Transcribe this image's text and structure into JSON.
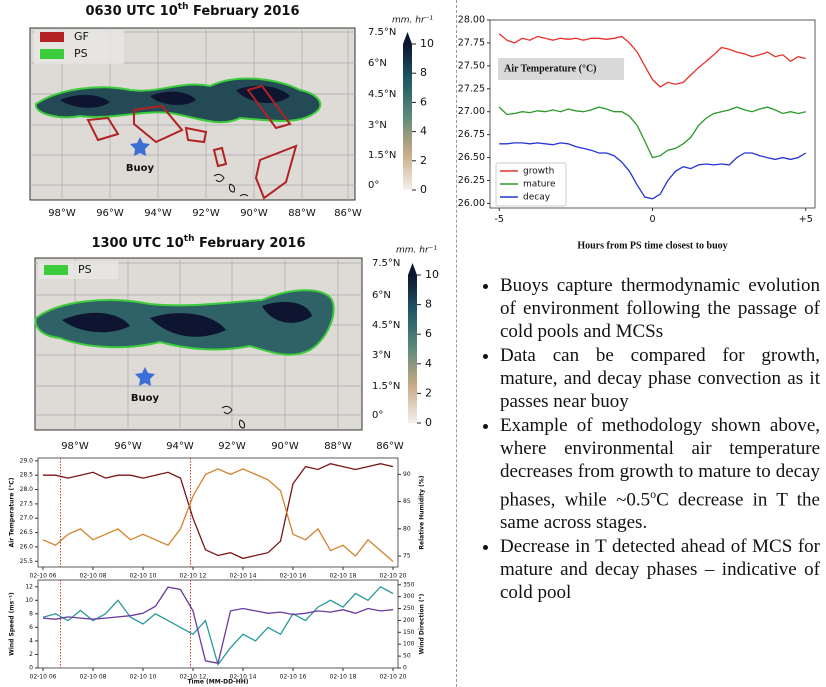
{
  "maps": [
    {
      "title": {
        "pre": "0630 UTC 10",
        "sup": "th",
        "post": " February 2016"
      },
      "unit": "mm. hr⁻¹",
      "legend": [
        {
          "name": "GF",
          "color": "#b22222"
        },
        {
          "name": "PS",
          "color": "#3ccc3c"
        }
      ],
      "lat_labels": [
        "7.5°N",
        "6°N",
        "4.5°N",
        "3°N",
        "1.5°N",
        "0°"
      ],
      "lon_labels": [
        "98°W",
        "96°W",
        "94°W",
        "92°W",
        "90°W",
        "88°W",
        "86°W"
      ],
      "colorbar_ticks": [
        0,
        2,
        4,
        6,
        8,
        10
      ],
      "buoy_label": "Buoy"
    },
    {
      "title": {
        "pre": "1300 UTC 10",
        "sup": "th",
        "post": " February 2016"
      },
      "unit": "mm. hr⁻¹",
      "legend": [
        {
          "name": "PS",
          "color": "#3ccc3c"
        }
      ],
      "lat_labels": [
        "7.5°N",
        "6°N",
        "4.5°N",
        "3°N",
        "1.5°N",
        "0°"
      ],
      "lon_labels": [
        "98°W",
        "96°W",
        "94°W",
        "92°W",
        "90°W",
        "88°W",
        "86°W"
      ],
      "colorbar_ticks": [
        0,
        2,
        4,
        6,
        8,
        10
      ],
      "buoy_label": "Buoy"
    }
  ],
  "chart_data": [
    {
      "type": "line",
      "x": [
        6,
        6.5,
        7,
        7.5,
        8,
        8.5,
        9,
        9.5,
        10,
        10.5,
        11,
        11.5,
        12,
        12.5,
        13,
        13.5,
        14,
        14.5,
        15,
        15.5,
        16,
        16.5,
        17,
        17.5,
        18,
        18.5,
        19,
        19.5,
        20
      ],
      "xlim": [
        5.8,
        20.2
      ],
      "xticks": [
        {
          "value": 6,
          "label": "02-10 06"
        },
        {
          "value": 8,
          "label": "02-10 08"
        },
        {
          "value": 10,
          "label": "02-10 10"
        },
        {
          "value": 12,
          "label": "02-10 12"
        },
        {
          "value": 14,
          "label": "02-10 14"
        },
        {
          "value": 16,
          "label": "02-10 16"
        },
        {
          "value": 18,
          "label": "02-10 18"
        },
        {
          "value": 20,
          "label": "02-10 20"
        }
      ],
      "ylim": [
        25.3,
        29.1
      ],
      "yticks": [
        25.5,
        {
          "value": 26,
          "label": "26.0"
        },
        26.5,
        {
          "value": 27,
          "label": "27.0"
        },
        27.5,
        {
          "value": 28,
          "label": "28.0"
        },
        28.5,
        {
          "value": 29,
          "label": "29.0"
        }
      ],
      "y2lim": [
        73,
        93
      ],
      "y2ticks": [
        75,
        80,
        85,
        90
      ],
      "ylabel": "Air Temperature (°C)",
      "y2label": "Relative Humidity (%)",
      "vlines": [
        6.7,
        11.9
      ],
      "vline_color": "#c0392b",
      "series": [
        {
          "color": "#7a1616",
          "values": [
            28.5,
            28.5,
            28.4,
            28.5,
            28.6,
            28.4,
            28.5,
            28.5,
            28.4,
            28.5,
            28.6,
            28.4,
            27,
            25.9,
            25.7,
            25.8,
            25.6,
            25.7,
            25.8,
            26.2,
            28.2,
            28.8,
            28.7,
            28.9,
            28.8,
            28.7,
            28.8,
            28.9,
            28.8
          ]
        },
        {
          "color": "#d4822a",
          "axis": "y2",
          "values": [
            78,
            77,
            79,
            80,
            78,
            79,
            80,
            78,
            79,
            78,
            77,
            80,
            86,
            90,
            91,
            90,
            91,
            90,
            89,
            87,
            79,
            78,
            80,
            76,
            77,
            75,
            78,
            76,
            74
          ]
        }
      ]
    },
    {
      "type": "line",
      "x": [
        6,
        6.5,
        7,
        7.5,
        8,
        8.5,
        9,
        9.5,
        10,
        10.5,
        11,
        11.5,
        12,
        12.5,
        13,
        13.5,
        14,
        14.5,
        15,
        15.5,
        16,
        16.5,
        17,
        17.5,
        18,
        18.5,
        19,
        19.5,
        20
      ],
      "xlim": [
        5.8,
        20.2
      ],
      "xticks": [
        {
          "value": 6,
          "label": "02-10 06"
        },
        {
          "value": 8,
          "label": "02-10 08"
        },
        {
          "value": 10,
          "label": "02-10 10"
        },
        {
          "value": 12,
          "label": "02-10 12"
        },
        {
          "value": 14,
          "label": "02-10 14"
        },
        {
          "value": 16,
          "label": "02-10 16"
        },
        {
          "value": 18,
          "label": "02-10 18"
        },
        {
          "value": 20,
          "label": "02-10 20"
        }
      ],
      "ylim": [
        0,
        13
      ],
      "yticks": [
        0,
        2,
        4,
        6,
        8,
        10,
        12
      ],
      "y2lim": [
        0,
        370
      ],
      "y2ticks": [
        0,
        50,
        100,
        150,
        200,
        250,
        300,
        350
      ],
      "ylabel": "Wind Speed (ms⁻¹)",
      "y2label": "Wind Direction (°)",
      "xlabel": "Time (MM-DD-HH)",
      "vlines": [
        6.7,
        11.9
      ],
      "vline_color": "#c0392b",
      "series": [
        {
          "color": "#2a9a9a",
          "values": [
            7.5,
            8,
            7,
            8.5,
            7,
            8,
            10,
            7.5,
            6.5,
            8,
            7,
            6,
            5,
            7,
            0.5,
            3,
            5,
            4,
            6,
            5,
            8,
            7,
            9,
            10,
            9,
            11,
            10,
            12,
            11
          ]
        },
        {
          "color": "#6a3aa0",
          "axis": "y2",
          "values": [
            210,
            205,
            215,
            210,
            205,
            210,
            215,
            220,
            230,
            260,
            340,
            330,
            240,
            30,
            20,
            240,
            250,
            240,
            230,
            235,
            225,
            230,
            240,
            235,
            245,
            230,
            250,
            240,
            245
          ]
        }
      ]
    },
    {
      "type": "line",
      "x": [
        -5,
        -4.75,
        -4.5,
        -4.25,
        -4,
        -3.75,
        -3.5,
        -3.25,
        -3,
        -2.75,
        -2.5,
        -2.25,
        -2,
        -1.75,
        -1.5,
        -1.25,
        -1,
        -0.75,
        -0.5,
        -0.25,
        0,
        0.25,
        0.5,
        0.75,
        1,
        1.25,
        1.5,
        1.75,
        2,
        2.25,
        2.5,
        2.75,
        3,
        3.25,
        3.5,
        3.75,
        4,
        4.25,
        4.5,
        4.75,
        5
      ],
      "xlim": [
        -5.3,
        5.3
      ],
      "xticks": [
        -5,
        0,
        {
          "value": 5,
          "label": "+5"
        }
      ],
      "ylim": [
        25.95,
        28.0
      ],
      "yticks": [
        {
          "value": 26,
          "label": "26.00"
        },
        26.25,
        {
          "value": 26.5,
          "label": "26.50"
        },
        26.75,
        {
          "value": 27,
          "label": "27.00"
        },
        27.25,
        {
          "value": 27.5,
          "label": "27.50"
        },
        27.75,
        {
          "value": 28,
          "label": "28.00"
        }
      ],
      "xlabel": "Hours from  PS time closest to buoy",
      "annotation": "Air Temperature (°C)",
      "legend": "lower left",
      "series": [
        {
          "name": "growth",
          "color": "#e8302a",
          "values": [
            27.85,
            27.78,
            27.75,
            27.8,
            27.78,
            27.82,
            27.8,
            27.78,
            27.8,
            27.79,
            27.8,
            27.78,
            27.8,
            27.8,
            27.79,
            27.8,
            27.82,
            27.75,
            27.65,
            27.5,
            27.35,
            27.27,
            27.32,
            27.3,
            27.32,
            27.4,
            27.48,
            27.55,
            27.62,
            27.7,
            27.68,
            27.65,
            27.63,
            27.6,
            27.62,
            27.65,
            27.6,
            27.62,
            27.55,
            27.6,
            27.58
          ]
        },
        {
          "name": "mature",
          "color": "#2a9a2a",
          "values": [
            27.05,
            26.97,
            26.98,
            27.0,
            26.99,
            27.01,
            27.0,
            27.02,
            27.0,
            27.03,
            27.01,
            27.0,
            27.02,
            27.05,
            27.03,
            27.0,
            27.0,
            26.95,
            26.85,
            26.68,
            26.5,
            26.52,
            26.58,
            26.6,
            26.65,
            26.72,
            26.85,
            26.93,
            26.98,
            27.0,
            27.02,
            27.05,
            27.02,
            27.0,
            27.03,
            27.05,
            27.02,
            26.98,
            27.0,
            26.98,
            27.0
          ]
        },
        {
          "name": "decay",
          "color": "#2435d8",
          "values": [
            26.65,
            26.65,
            26.66,
            26.66,
            26.65,
            26.66,
            26.65,
            26.64,
            26.66,
            26.65,
            26.62,
            26.6,
            26.58,
            26.55,
            26.55,
            26.52,
            26.45,
            26.35,
            26.2,
            26.07,
            26.05,
            26.1,
            26.25,
            26.35,
            26.4,
            26.38,
            26.42,
            26.43,
            26.42,
            26.43,
            26.42,
            26.5,
            26.55,
            26.55,
            26.52,
            26.5,
            26.48,
            26.5,
            26.48,
            26.5,
            26.55
          ]
        }
      ]
    }
  ],
  "bullets": [
    [
      "Buoys capture thermodynamic evolution of environment following the passage of cold pools and MCSs"
    ],
    [
      "Data can be compared for growth, mature, and decay phase convection as it passes near buoy"
    ],
    [
      "Example of methodology shown above, where environmental air temperature decreases from growth to mature to decay phases, while ~0.5",
      "o",
      "C decrease in T the same across stages."
    ],
    [
      "Decrease in T detected ahead of MCS for mature and decay phases – indicative of cold pool"
    ]
  ]
}
